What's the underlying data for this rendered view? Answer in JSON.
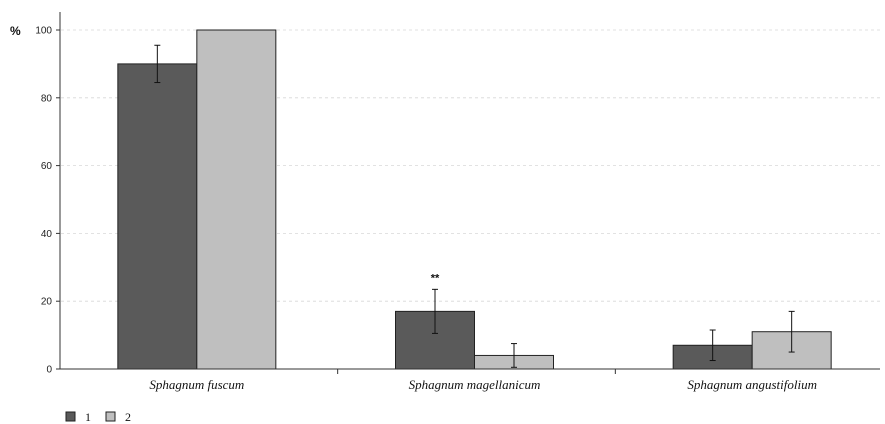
{
  "chart_data": {
    "type": "bar",
    "title": "",
    "xlabel": "",
    "ylabel": "%",
    "ylim": [
      0,
      105
    ],
    "yticks": [
      0,
      20,
      40,
      60,
      80,
      100
    ],
    "grid": true,
    "legend_position": "bottom-left",
    "categories": [
      "Sphagnum fuscum",
      "Sphagnum magellanicum",
      "Sphagnum angustifolium"
    ],
    "series": [
      {
        "name": "1",
        "color": "#5a5a5a",
        "values": [
          90,
          17,
          7
        ],
        "errors": [
          5.5,
          6.5,
          4.5
        ]
      },
      {
        "name": "2",
        "color": "#bfbfbf",
        "values": [
          100,
          4,
          11
        ],
        "errors": [
          0,
          3.5,
          6
        ]
      }
    ],
    "annotations": [
      {
        "category": "Sphagnum magellanicum",
        "series": "1",
        "text": "**"
      }
    ]
  }
}
